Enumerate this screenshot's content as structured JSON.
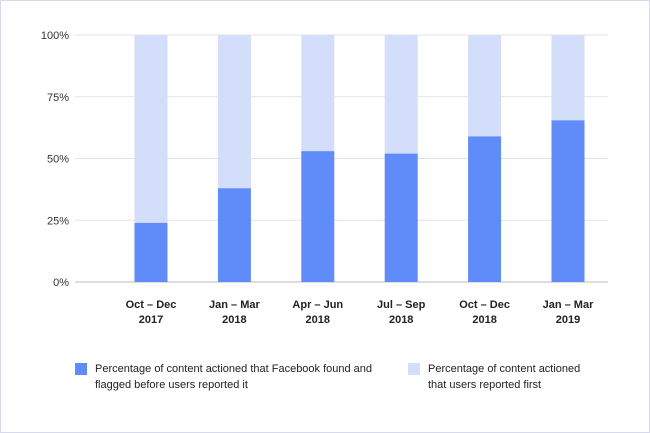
{
  "chart_data": {
    "type": "bar",
    "stacked": true,
    "title": "",
    "xlabel": "",
    "ylabel": "",
    "ylim": [
      0,
      100
    ],
    "yticks": [
      "0%",
      "25%",
      "50%",
      "75%",
      "100%"
    ],
    "categories": [
      [
        "Oct – Dec",
        "2017"
      ],
      [
        "Jan – Mar",
        "2018"
      ],
      [
        "Apr – Jun",
        "2018"
      ],
      [
        "Jul – Sep",
        "2018"
      ],
      [
        "Oct – Dec",
        "2018"
      ],
      [
        "Jan – Mar",
        "2019"
      ]
    ],
    "series": [
      {
        "name": "Percentage of content actioned that Facebook found and flagged before users reported it",
        "color": "#5f8cf8",
        "values": [
          24,
          38,
          53,
          52,
          59,
          65.5
        ]
      },
      {
        "name": "Percentage of content actioned that users reported first",
        "color": "#d2defa",
        "values": [
          76,
          62,
          47,
          48,
          41,
          34.5
        ]
      }
    ],
    "grid": true,
    "legend_position": "bottom"
  },
  "legend": {
    "item1_line1": "Percentage of content actioned that Facebook found and",
    "item1_line2": "flagged before users reported it",
    "item2_line1": "Percentage of content actioned",
    "item2_line2": "that users reported first"
  }
}
